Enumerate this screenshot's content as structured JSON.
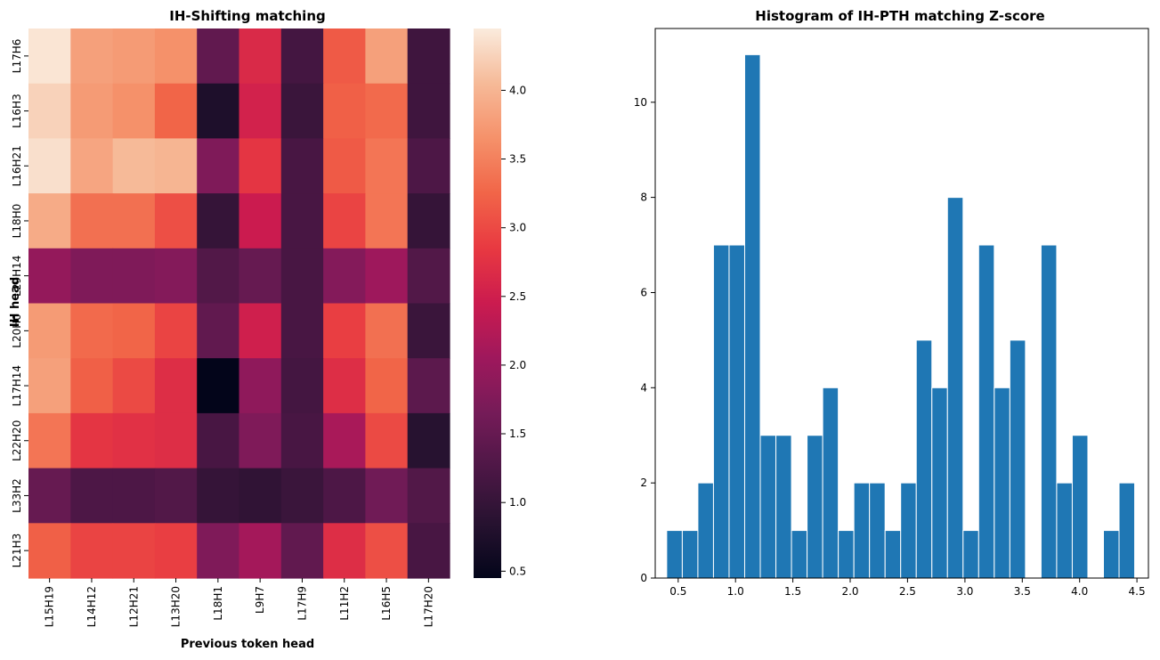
{
  "chart_data": [
    {
      "type": "heatmap",
      "title": "IH-Shifting matching",
      "xlabel": "Previous token head",
      "ylabel": "IH head",
      "x_labels": [
        "L15H19",
        "L14H12",
        "L12H21",
        "L13H20",
        "L18H1",
        "L9H7",
        "L17H9",
        "L11H2",
        "L16H5",
        "L17H20"
      ],
      "y_labels": [
        "L17H6",
        "L16H3",
        "L16H21",
        "L18H0",
        "L29H14",
        "L20H0",
        "L17H14",
        "L22H20",
        "L33H2",
        "L21H3"
      ],
      "values": [
        [
          4.4,
          3.8,
          3.75,
          3.65,
          1.45,
          2.65,
          1.15,
          3.15,
          3.8,
          1.1
        ],
        [
          4.25,
          3.75,
          3.65,
          3.25,
          0.75,
          2.55,
          1.05,
          3.2,
          3.3,
          1.1
        ],
        [
          4.35,
          3.85,
          4.05,
          4.0,
          1.75,
          2.8,
          1.2,
          3.15,
          3.4,
          1.25
        ],
        [
          3.9,
          3.35,
          3.35,
          3.05,
          1.0,
          2.45,
          1.2,
          2.95,
          3.4,
          1.0
        ],
        [
          1.95,
          1.75,
          1.75,
          1.8,
          1.3,
          1.5,
          1.2,
          1.8,
          2.05,
          1.3
        ],
        [
          3.75,
          3.3,
          3.25,
          2.95,
          1.45,
          2.5,
          1.2,
          2.9,
          3.35,
          1.05
        ],
        [
          3.8,
          3.2,
          3.0,
          2.7,
          0.45,
          1.9,
          1.15,
          2.7,
          3.25,
          1.4
        ],
        [
          3.4,
          2.8,
          2.75,
          2.7,
          1.2,
          1.75,
          1.2,
          2.15,
          3.0,
          0.85
        ],
        [
          1.5,
          1.25,
          1.25,
          1.3,
          1.0,
          0.95,
          1.05,
          1.25,
          1.6,
          1.3
        ],
        [
          3.2,
          2.95,
          2.95,
          2.9,
          1.75,
          2.1,
          1.45,
          2.7,
          3.05,
          1.2
        ]
      ],
      "colorbar": {
        "min": 0.45,
        "max": 4.45,
        "ticks": [
          "0.5",
          "1.0",
          "1.5",
          "2.0",
          "2.5",
          "3.0",
          "3.5",
          "4.0"
        ]
      }
    },
    {
      "type": "bar",
      "title": "Histogram of IH-PTH matching Z-score",
      "xlabel": "",
      "ylabel": "",
      "bin_start": 0.4,
      "bin_width": 0.136,
      "counts": [
        1,
        1,
        2,
        7,
        7,
        11,
        3,
        3,
        1,
        3,
        4,
        1,
        2,
        2,
        1,
        2,
        5,
        4,
        8,
        1,
        7,
        4,
        5,
        0,
        7,
        2,
        3,
        0,
        1,
        2
      ],
      "xlim": [
        0.3,
        4.6
      ],
      "ylim": [
        0,
        11.55
      ],
      "x_ticks": [
        "0.5",
        "1.0",
        "1.5",
        "2.0",
        "2.5",
        "3.0",
        "3.5",
        "4.0",
        "4.5"
      ],
      "y_ticks": [
        "0",
        "2",
        "4",
        "6",
        "8",
        "10"
      ],
      "color": "#1f77b4"
    }
  ]
}
